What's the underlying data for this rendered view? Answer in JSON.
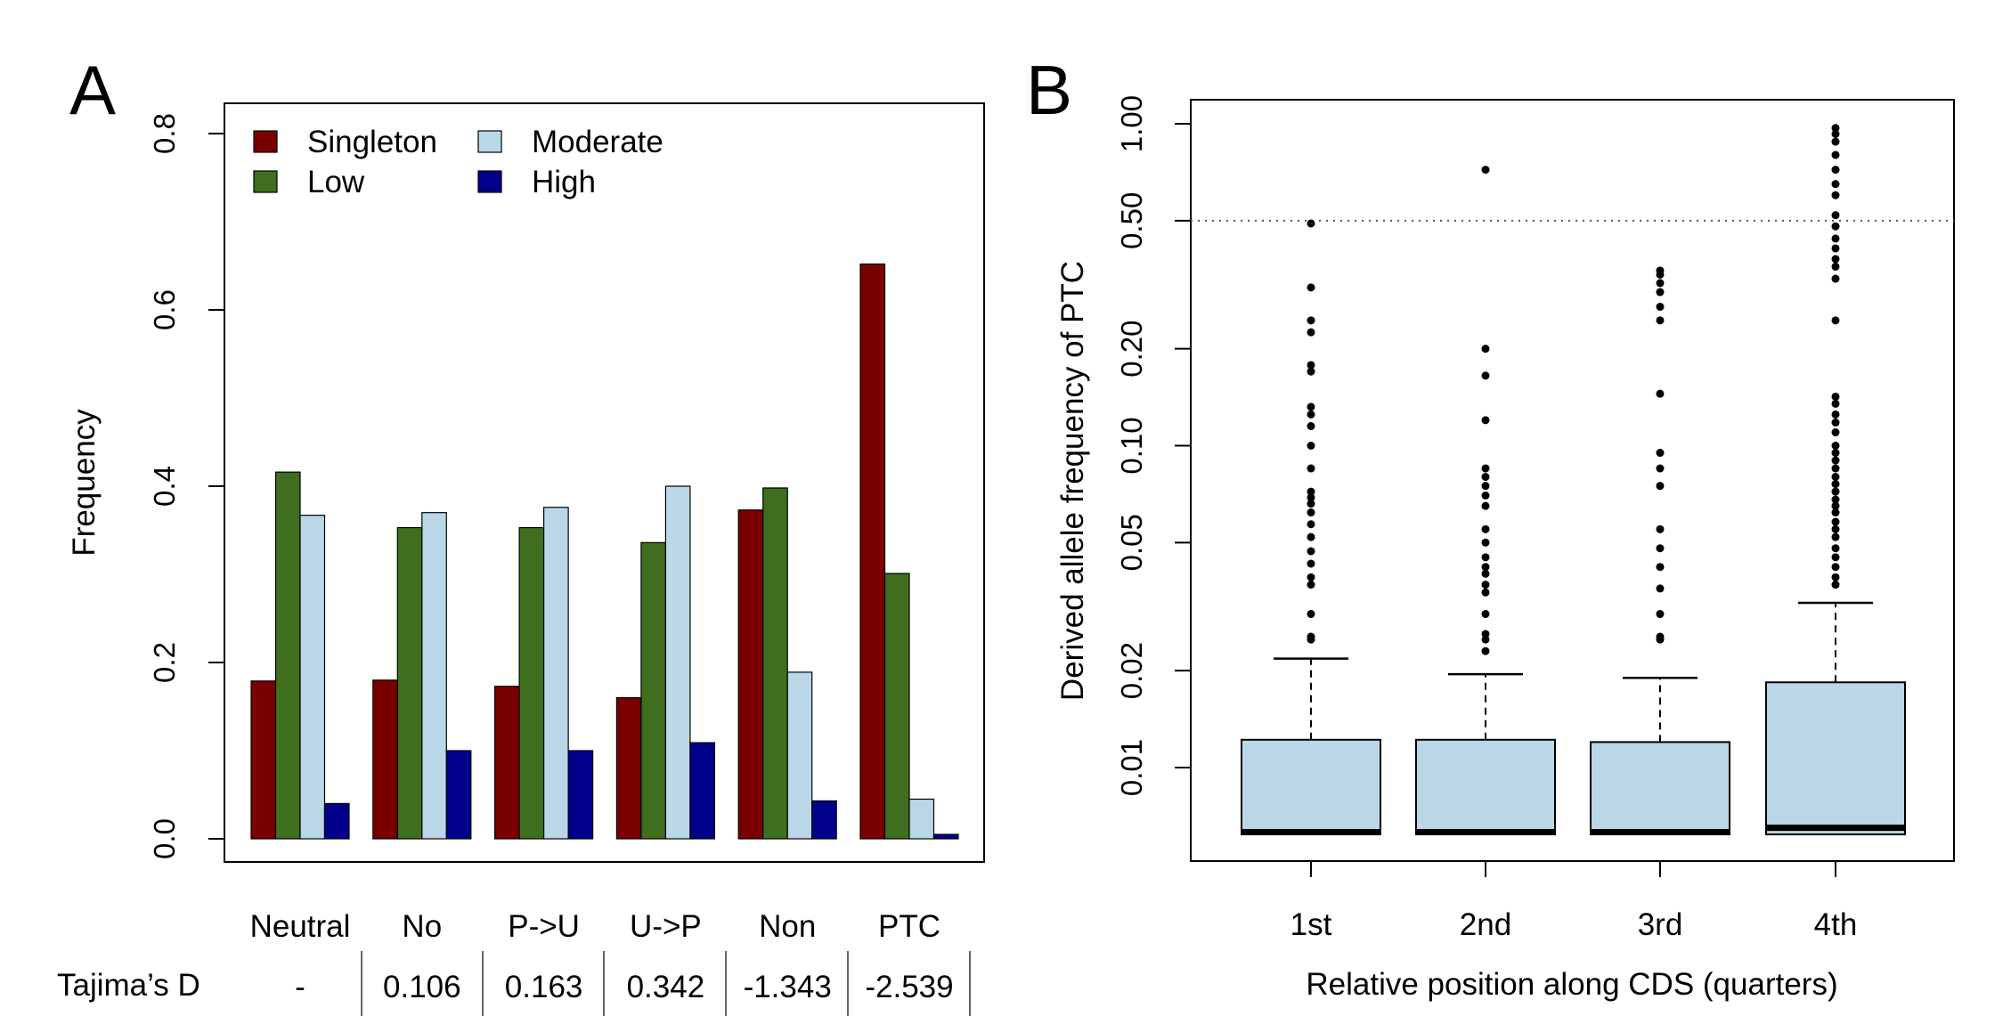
{
  "chart_data": [
    {
      "type": "bar",
      "panel_label": "A",
      "categories": [
        "Neutral",
        "No",
        "P->U",
        "U->P",
        "Non",
        "PTC"
      ],
      "series": [
        {
          "name": "Singleton",
          "color": "#7a0000",
          "values": [
            0.179,
            0.18,
            0.173,
            0.16,
            0.373,
            0.652
          ]
        },
        {
          "name": "Low",
          "color": "#3e6e1e",
          "values": [
            0.416,
            0.353,
            0.353,
            0.336,
            0.398,
            0.301
          ]
        },
        {
          "name": "Moderate",
          "color": "#b9d7e6",
          "values": [
            0.367,
            0.37,
            0.376,
            0.4,
            0.189,
            0.045
          ]
        },
        {
          "name": "High",
          "color": "#00008b",
          "values": [
            0.04,
            0.1,
            0.1,
            0.109,
            0.043,
            0.005
          ]
        }
      ],
      "ylabel": "Frequency",
      "xlabel": "",
      "ylim": [
        0,
        0.8
      ],
      "yticks": [
        "0.0",
        "0.2",
        "0.4",
        "0.6",
        "0.8"
      ],
      "legend_position": "top-left",
      "table": {
        "row_label": "Tajima’s D",
        "values": [
          "-",
          "0.106",
          "0.163",
          "0.342",
          "-1.343",
          "-2.539"
        ]
      }
    },
    {
      "type": "box",
      "panel_label": "B",
      "categories": [
        "1st",
        "2nd",
        "3rd",
        "4th"
      ],
      "xlabel": "Relative position along CDS (quarters)",
      "ylabel": "Derived allele frequency of PTC",
      "yscale": "log",
      "ylim": [
        0.0055,
        1.0
      ],
      "yticks": [
        "0.01",
        "0.02",
        "0.05",
        "0.10",
        "0.20",
        "0.50",
        "1.00"
      ],
      "reference_line": 0.5,
      "box_color": "#b9d7e6",
      "boxes": [
        {
          "q1": 0.0062,
          "median": 0.0063,
          "q3": 0.0122,
          "whisker_high": 0.0218,
          "outliers": [
            0.025,
            0.0255,
            0.03,
            0.037,
            0.039,
            0.043,
            0.047,
            0.052,
            0.057,
            0.062,
            0.066,
            0.069,
            0.072,
            0.085,
            0.1,
            0.115,
            0.125,
            0.132,
            0.17,
            0.178,
            0.225,
            0.245,
            0.31,
            0.49
          ]
        },
        {
          "q1": 0.0062,
          "median": 0.0063,
          "q3": 0.0122,
          "whisker_high": 0.0195,
          "outliers": [
            0.023,
            0.025,
            0.026,
            0.03,
            0.035,
            0.037,
            0.04,
            0.042,
            0.045,
            0.05,
            0.055,
            0.065,
            0.07,
            0.075,
            0.08,
            0.085,
            0.12,
            0.165,
            0.2,
            0.72
          ]
        },
        {
          "q1": 0.0062,
          "median": 0.0063,
          "q3": 0.012,
          "whisker_high": 0.019,
          "outliers": [
            0.025,
            0.0255,
            0.03,
            0.036,
            0.042,
            0.048,
            0.055,
            0.075,
            0.085,
            0.095,
            0.145,
            0.245,
            0.27,
            0.3,
            0.32,
            0.34,
            0.35
          ]
        },
        {
          "q1": 0.0062,
          "median": 0.0065,
          "q3": 0.0184,
          "whisker_high": 0.0325,
          "outliers": [
            0.037,
            0.039,
            0.042,
            0.045,
            0.048,
            0.052,
            0.055,
            0.058,
            0.062,
            0.065,
            0.068,
            0.072,
            0.076,
            0.08,
            0.085,
            0.09,
            0.095,
            0.1,
            0.11,
            0.118,
            0.125,
            0.135,
            0.142,
            0.245,
            0.33,
            0.36,
            0.38,
            0.41,
            0.44,
            0.48,
            0.52,
            0.6,
            0.65,
            0.72,
            0.8,
            0.88,
            0.93,
            0.97
          ]
        }
      ]
    }
  ]
}
